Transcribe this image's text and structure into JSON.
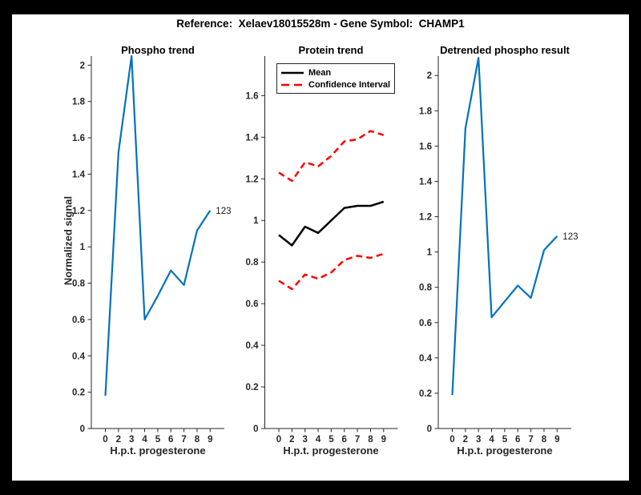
{
  "window": {
    "frame_color": "#000000",
    "canvas_color": "#ffffff",
    "axis_color": "#262626"
  },
  "header": {
    "suptitle": "Reference:  Xelaev18015528m - Gene Symbol:  CHAMP1"
  },
  "chart_data": [
    {
      "type": "line",
      "title": "Phospho trend",
      "xlabel": "H.p.t. progesterone",
      "ylabel": "Normalized signal",
      "x_ticklabels": [
        "0",
        "2",
        "3",
        "4",
        "5",
        "6",
        "7",
        "8",
        "9"
      ],
      "y_ticklabels": [
        "0",
        "0.2",
        "0.4",
        "0.6",
        "0.8",
        "1",
        "1.2",
        "1.4",
        "1.6",
        "1.8",
        "2"
      ],
      "ylim": [
        0,
        2.05
      ],
      "grid": false,
      "series": [
        {
          "name": "phospho-signal",
          "color": "#0072BD",
          "dash": false,
          "width": 2.2,
          "values": [
            0.18,
            1.52,
            2.05,
            0.6,
            0.73,
            0.87,
            0.79,
            1.09,
            1.2
          ]
        }
      ],
      "end_label": "123"
    },
    {
      "type": "line",
      "title": "Protein trend",
      "xlabel": "H.p.t. progesterone",
      "ylabel": "",
      "x_ticklabels": [
        "0",
        "2",
        "3",
        "4",
        "5",
        "6",
        "7",
        "8",
        "9"
      ],
      "y_ticklabels": [
        "0",
        "0.2",
        "0.4",
        "0.6",
        "0.8",
        "1",
        "1.2",
        "1.4",
        "1.6"
      ],
      "ylim": [
        0,
        1.79
      ],
      "grid": false,
      "legend_position": "top-left",
      "legend": [
        {
          "label": "Mean",
          "color": "#000000",
          "dash": false
        },
        {
          "label": "Confidence Interval",
          "color": "#FF0000",
          "dash": true
        }
      ],
      "series": [
        {
          "name": "mean",
          "color": "#000000",
          "dash": false,
          "width": 2.5,
          "values": [
            0.93,
            0.88,
            0.97,
            0.94,
            1.0,
            1.06,
            1.07,
            1.07,
            1.09
          ]
        },
        {
          "name": "confidence-interval-upper",
          "color": "#FF0000",
          "dash": true,
          "width": 2.5,
          "values": [
            1.23,
            1.19,
            1.28,
            1.26,
            1.31,
            1.38,
            1.39,
            1.43,
            1.41
          ]
        },
        {
          "name": "confidence-interval-lower",
          "color": "#FF0000",
          "dash": true,
          "width": 2.5,
          "values": [
            0.71,
            0.67,
            0.74,
            0.72,
            0.75,
            0.81,
            0.83,
            0.82,
            0.84
          ]
        }
      ]
    },
    {
      "type": "line",
      "title": "Detrended phospho result",
      "xlabel": "H.p.t. progesterone",
      "ylabel": "",
      "x_ticklabels": [
        "0",
        "2",
        "3",
        "4",
        "5",
        "6",
        "7",
        "8",
        "9"
      ],
      "y_ticklabels": [
        "0",
        "0.2",
        "0.4",
        "0.6",
        "0.8",
        "1",
        "1.2",
        "1.4",
        "1.6",
        "1.8",
        "2"
      ],
      "ylim": [
        0,
        2.11
      ],
      "grid": false,
      "series": [
        {
          "name": "detrended-phospho-signal",
          "color": "#0072BD",
          "dash": false,
          "width": 2.2,
          "values": [
            0.19,
            1.7,
            2.1,
            0.63,
            0.72,
            0.81,
            0.74,
            1.01,
            1.09
          ]
        }
      ],
      "end_label": "123"
    }
  ]
}
